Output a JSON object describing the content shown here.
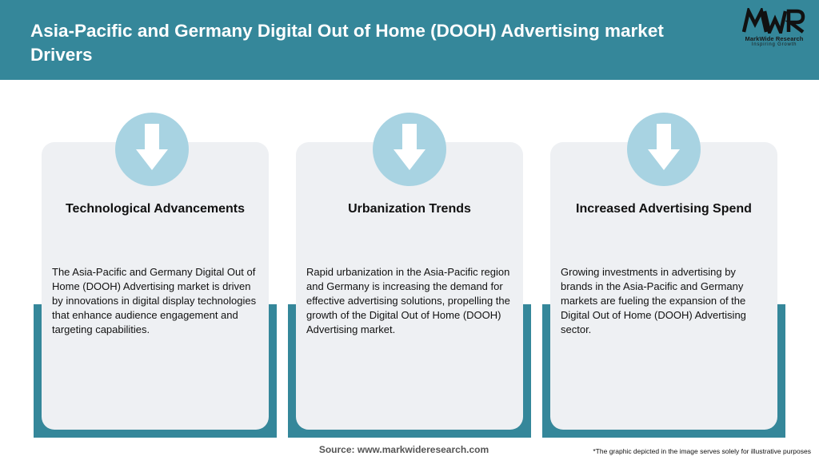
{
  "header": {
    "title": "Asia-Pacific and Germany Digital Out of Home (DOOH) Advertising market Drivers"
  },
  "logo": {
    "mark": "MWR",
    "name": "MarkWide Research",
    "tagline": "Inspiring Growth"
  },
  "cards": [
    {
      "icon": "arrow-down-icon",
      "title": "Technological Advancements",
      "text": "The Asia-Pacific and Germany Digital Out of Home (DOOH) Advertising market is driven by innovations in digital display technologies that enhance audience engagement and targeting capabilities."
    },
    {
      "icon": "arrow-down-icon",
      "title": "Urbanization Trends",
      "text": "Rapid urbanization in the Asia-Pacific region and Germany is increasing the demand for effective advertising solutions, propelling the growth of the Digital Out of Home (DOOH) Advertising market."
    },
    {
      "icon": "arrow-down-icon",
      "title": "Increased Advertising Spend",
      "text": "Growing investments in advertising by brands in the Asia-Pacific and Germany markets are fueling the expansion of the Digital Out of Home (DOOH) Advertising sector."
    }
  ],
  "footer": {
    "source": "Source: www.markwideresearch.com",
    "disclaimer": "*The graphic depicted in the image serves solely for illustrative purposes"
  },
  "colors": {
    "header_bg": "#35879a",
    "accent": "#35879a",
    "card_bg": "#eef0f3",
    "icon_circle": "#a8d3e2"
  }
}
